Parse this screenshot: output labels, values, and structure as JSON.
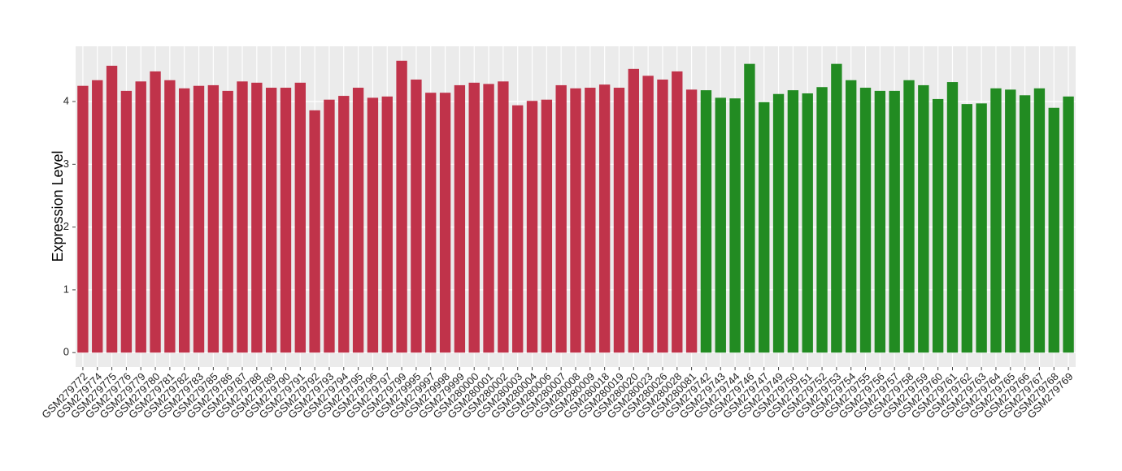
{
  "chart_data": {
    "type": "bar",
    "y_label": "Expression Level",
    "categories": [
      "GSM279772",
      "GSM279774",
      "GSM279775",
      "GSM279776",
      "GSM279779",
      "GSM279780",
      "GSM279781",
      "GSM279782",
      "GSM279783",
      "GSM279785",
      "GSM279786",
      "GSM279787",
      "GSM279788",
      "GSM279789",
      "GSM279790",
      "GSM279791",
      "GSM279792",
      "GSM279793",
      "GSM279794",
      "GSM279795",
      "GSM279796",
      "GSM279797",
      "GSM279799",
      "GSM279995",
      "GSM279997",
      "GSM279998",
      "GSM279999",
      "GSM280000",
      "GSM280001",
      "GSM280002",
      "GSM280003",
      "GSM280004",
      "GSM280006",
      "GSM280007",
      "GSM280008",
      "GSM280009",
      "GSM280018",
      "GSM280019",
      "GSM280020",
      "GSM280023",
      "GSM280026",
      "GSM280028",
      "GSM280081",
      "GSM279742",
      "GSM279743",
      "GSM279744",
      "GSM279746",
      "GSM279747",
      "GSM279749",
      "GSM279750",
      "GSM279751",
      "GSM279752",
      "GSM279753",
      "GSM279754",
      "GSM279755",
      "GSM279756",
      "GSM279757",
      "GSM279758",
      "GSM279759",
      "GSM279760",
      "GSM279761",
      "GSM279762",
      "GSM279763",
      "GSM279764",
      "GSM279765",
      "GSM279766",
      "GSM279767",
      "GSM279768",
      "GSM279769"
    ],
    "values": [
      4.25,
      4.34,
      4.57,
      4.17,
      4.32,
      4.48,
      4.34,
      4.21,
      4.25,
      4.26,
      4.17,
      4.32,
      4.3,
      4.22,
      4.22,
      4.3,
      3.86,
      4.03,
      4.09,
      4.22,
      4.06,
      4.08,
      4.65,
      4.35,
      4.14,
      4.14,
      4.26,
      4.3,
      4.28,
      4.32,
      3.94,
      4.01,
      4.03,
      4.26,
      4.21,
      4.22,
      4.27,
      4.22,
      4.52,
      4.41,
      4.35,
      4.48,
      4.19,
      4.18,
      4.06,
      4.05,
      4.6,
      3.99,
      4.12,
      4.18,
      4.13,
      4.23,
      4.6,
      4.34,
      4.22,
      4.17,
      4.17,
      4.34,
      4.26,
      4.04,
      4.31,
      3.96,
      3.97,
      4.21,
      4.19,
      4.1,
      4.21,
      3.9,
      4.08
    ],
    "colors": [
      "#c0334a",
      "#c0334a",
      "#c0334a",
      "#c0334a",
      "#c0334a",
      "#c0334a",
      "#c0334a",
      "#c0334a",
      "#c0334a",
      "#c0334a",
      "#c0334a",
      "#c0334a",
      "#c0334a",
      "#c0334a",
      "#c0334a",
      "#c0334a",
      "#c0334a",
      "#c0334a",
      "#c0334a",
      "#c0334a",
      "#c0334a",
      "#c0334a",
      "#c0334a",
      "#c0334a",
      "#c0334a",
      "#c0334a",
      "#c0334a",
      "#c0334a",
      "#c0334a",
      "#c0334a",
      "#c0334a",
      "#c0334a",
      "#c0334a",
      "#c0334a",
      "#c0334a",
      "#c0334a",
      "#c0334a",
      "#c0334a",
      "#c0334a",
      "#c0334a",
      "#c0334a",
      "#c0334a",
      "#c0334a",
      "#228b22",
      "#228b22",
      "#228b22",
      "#228b22",
      "#228b22",
      "#228b22",
      "#228b22",
      "#228b22",
      "#228b22",
      "#228b22",
      "#228b22",
      "#228b22",
      "#228b22",
      "#228b22",
      "#228b22",
      "#228b22",
      "#228b22",
      "#228b22",
      "#228b22",
      "#228b22",
      "#228b22",
      "#228b22",
      "#228b22",
      "#228b22",
      "#228b22",
      "#228b22"
    ],
    "ylim": [
      -0.23,
      4.88
    ],
    "yticks": [
      0,
      1,
      2,
      3,
      4
    ],
    "grid": true,
    "background": "#ebebeb"
  }
}
